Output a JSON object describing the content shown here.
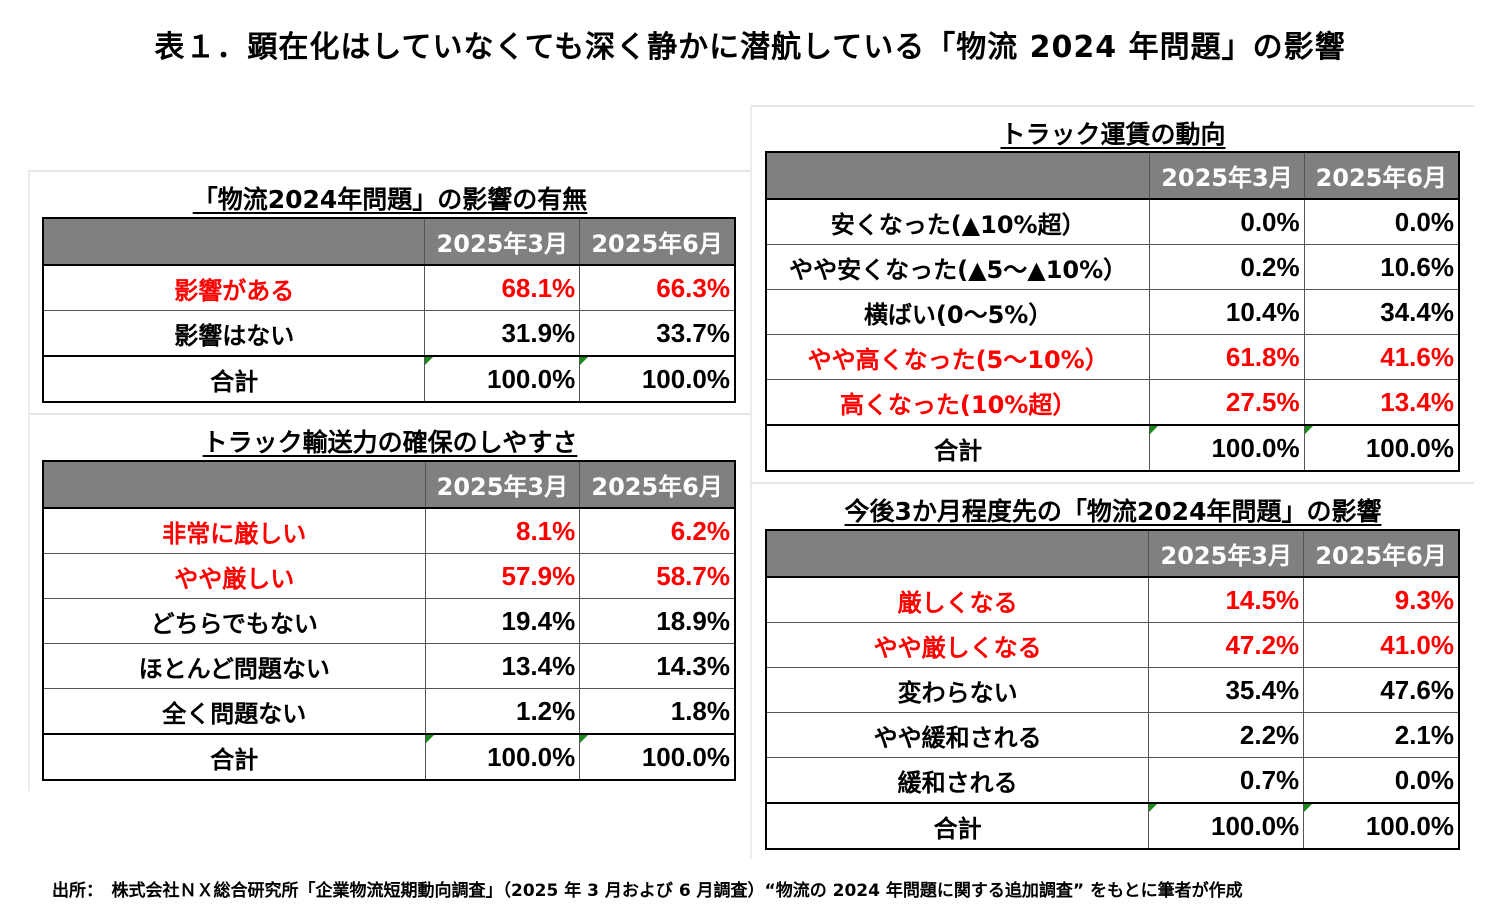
{
  "title": "表１．顕在化はしていなくても深く静かに潜航している「物流 2024 年問題」の影響",
  "columns": [
    "2025年3月",
    "2025年6月"
  ],
  "accent_red": "#ff0000",
  "tables": [
    {
      "id": "impact",
      "title": "「物流2024年問題」の影響の有無",
      "rows": [
        {
          "label": "影響がある",
          "v1": "68.1%",
          "v2": "66.3%",
          "highlight": true
        },
        {
          "label": "影響はない",
          "v1": "31.9%",
          "v2": "33.7%",
          "highlight": false
        },
        {
          "label": "合計",
          "v1": "100.0%",
          "v2": "100.0%",
          "highlight": false,
          "total": true
        }
      ]
    },
    {
      "id": "capacity",
      "title": "トラック輸送力の確保のしやすさ",
      "rows": [
        {
          "label": "非常に厳しい",
          "v1": "8.1%",
          "v2": "6.2%",
          "highlight": true
        },
        {
          "label": "やや厳しい",
          "v1": "57.9%",
          "v2": "58.7%",
          "highlight": true
        },
        {
          "label": "どちらでもない",
          "v1": "19.4%",
          "v2": "18.9%",
          "highlight": false
        },
        {
          "label": "ほとんど問題ない",
          "v1": "13.4%",
          "v2": "14.3%",
          "highlight": false
        },
        {
          "label": "全く問題ない",
          "v1": "1.2%",
          "v2": "1.8%",
          "highlight": false
        },
        {
          "label": "合計",
          "v1": "100.0%",
          "v2": "100.0%",
          "highlight": false,
          "total": true
        }
      ]
    },
    {
      "id": "freight",
      "title": "トラック運賃の動向",
      "rows": [
        {
          "label": "安くなった(▲10%超）",
          "v1": "0.0%",
          "v2": "0.0%",
          "highlight": false
        },
        {
          "label": "やや安くなった(▲5～▲10%）",
          "v1": "0.2%",
          "v2": "10.6%",
          "highlight": false
        },
        {
          "label": "横ばい(0～5%）",
          "v1": "10.4%",
          "v2": "34.4%",
          "highlight": false
        },
        {
          "label": "やや高くなった(5～10%）",
          "v1": "61.8%",
          "v2": "41.6%",
          "highlight": true
        },
        {
          "label": "高くなった(10%超）",
          "v1": "27.5%",
          "v2": "13.4%",
          "highlight": true
        },
        {
          "label": "合計",
          "v1": "100.0%",
          "v2": "100.0%",
          "highlight": false,
          "total": true
        }
      ]
    },
    {
      "id": "outlook",
      "title": "今後3か月程度先の「物流2024年問題」の影響",
      "rows": [
        {
          "label": "厳しくなる",
          "v1": "14.5%",
          "v2": "9.3%",
          "highlight": true
        },
        {
          "label": "やや厳しくなる",
          "v1": "47.2%",
          "v2": "41.0%",
          "highlight": true
        },
        {
          "label": "変わらない",
          "v1": "35.4%",
          "v2": "47.6%",
          "highlight": false
        },
        {
          "label": "やや緩和される",
          "v1": "2.2%",
          "v2": "2.1%",
          "highlight": false
        },
        {
          "label": "緩和される",
          "v1": "0.7%",
          "v2": "0.0%",
          "highlight": false
        },
        {
          "label": "合計",
          "v1": "100.0%",
          "v2": "100.0%",
          "highlight": false,
          "total": true
        }
      ]
    }
  ],
  "source": "出所：　株式会社ＮＸ総合研究所「企業物流短期動向調査」（2025 年 3 月および 6 月調査）“物流の 2024 年問題に関する追加調査” をもとに筆者が作成"
}
